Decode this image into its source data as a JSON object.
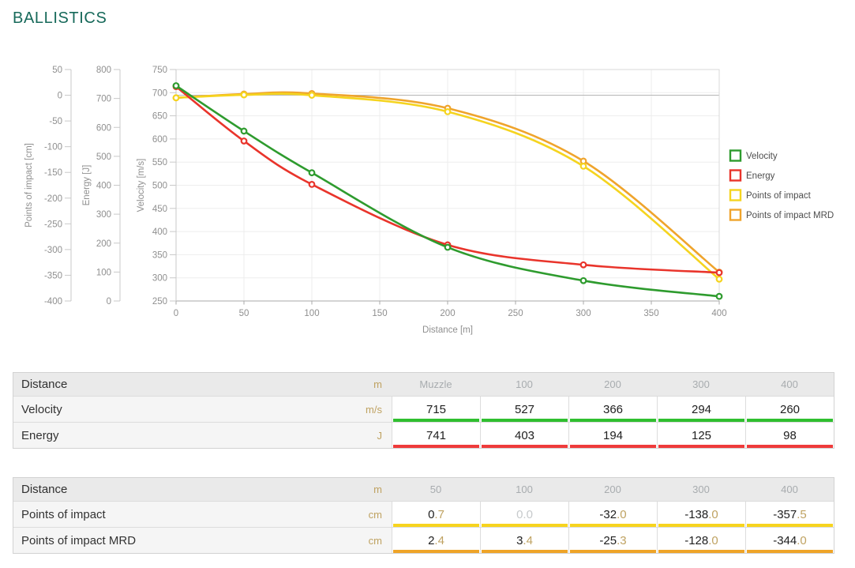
{
  "title": "BALLISTICS",
  "theme": {
    "title_color": "#17695a",
    "unit_color": "#bfa261",
    "muted_value_color": "#c7cacc"
  },
  "chart_data": {
    "type": "line",
    "xlabel": "Distance [m]",
    "x_range": [
      0,
      400
    ],
    "x_ticks": [
      0,
      50,
      100,
      150,
      200,
      250,
      300,
      350,
      400
    ],
    "grid": true,
    "legend_position": "right",
    "axes": [
      {
        "id": "impact",
        "label": "Points of impact [cm]",
        "range": [
          -400,
          50
        ],
        "ticks": [
          50,
          0,
          -50,
          -100,
          -150,
          -200,
          -250,
          -300,
          -350,
          -400
        ],
        "zero_line": 0
      },
      {
        "id": "energy",
        "label": "Energy [J]",
        "range": [
          0,
          800
        ],
        "ticks": [
          800,
          700,
          600,
          500,
          400,
          300,
          200,
          100,
          0
        ]
      },
      {
        "id": "velocity",
        "label": "Velocity [m/s]",
        "range": [
          250,
          750
        ],
        "ticks": [
          750,
          700,
          650,
          600,
          550,
          500,
          450,
          400,
          350,
          300,
          250
        ]
      }
    ],
    "series": [
      {
        "name": "Velocity",
        "axis": "velocity",
        "color": "#2e9b2e",
        "x": [
          0,
          50,
          100,
          200,
          300,
          400
        ],
        "y": [
          715,
          617,
          527,
          366,
          294,
          260
        ]
      },
      {
        "name": "Energy",
        "axis": "energy",
        "color": "#e9342b",
        "x": [
          0,
          50,
          100,
          200,
          300,
          400
        ],
        "y": [
          741,
          553,
          403,
          194,
          125,
          98
        ]
      },
      {
        "name": "Points of impact",
        "axis": "impact",
        "color": "#f5d41f",
        "x": [
          0,
          50,
          100,
          200,
          300,
          400
        ],
        "y": [
          -5.0,
          0.7,
          0.0,
          -32.0,
          -138.0,
          -357.5
        ]
      },
      {
        "name": "Points of impact MRD",
        "axis": "impact",
        "color": "#efa42c",
        "x": [
          0,
          50,
          100,
          200,
          300,
          400
        ],
        "y": [
          -5.0,
          2.4,
          3.4,
          -25.3,
          -128.0,
          -344.0
        ]
      }
    ],
    "legend": [
      {
        "label": "Velocity",
        "color": "#2e9b2e"
      },
      {
        "label": "Energy",
        "color": "#e9342b"
      },
      {
        "label": "Points of impact",
        "color": "#f5d41f"
      },
      {
        "label": "Points of impact MRD",
        "color": "#efa42c"
      }
    ]
  },
  "tables": [
    {
      "id": "velocity-energy",
      "header": {
        "label": "Distance",
        "unit": "m",
        "columns": [
          "Muzzle",
          "100",
          "200",
          "300",
          "400"
        ]
      },
      "rows": [
        {
          "label": "Velocity",
          "unit": "m/s",
          "stripe": "#2fbf2f",
          "values": [
            {
              "main": "715"
            },
            {
              "main": "527"
            },
            {
              "main": "366"
            },
            {
              "main": "294"
            },
            {
              "main": "260"
            }
          ]
        },
        {
          "label": "Energy",
          "unit": "J",
          "stripe": "#ef3b3b",
          "values": [
            {
              "main": "741"
            },
            {
              "main": "403"
            },
            {
              "main": "194"
            },
            {
              "main": "125"
            },
            {
              "main": "98"
            }
          ]
        }
      ]
    },
    {
      "id": "points-of-impact",
      "header": {
        "label": "Distance",
        "unit": "m",
        "columns": [
          "50",
          "100",
          "200",
          "300",
          "400"
        ]
      },
      "rows": [
        {
          "label": "Points of impact",
          "unit": "cm",
          "stripe": "#f7d41e",
          "values": [
            {
              "main": "0",
              "dec": ".7"
            },
            {
              "main": "0",
              "dec": ".0",
              "muted": true
            },
            {
              "main": "-32",
              "dec": ".0"
            },
            {
              "main": "-138",
              "dec": ".0"
            },
            {
              "main": "-357",
              "dec": ".5"
            }
          ]
        },
        {
          "label": "Points of impact MRD",
          "unit": "cm",
          "stripe": "#eea428",
          "values": [
            {
              "main": "2",
              "dec": ".4"
            },
            {
              "main": "3",
              "dec": ".4"
            },
            {
              "main": "-25",
              "dec": ".3"
            },
            {
              "main": "-128",
              "dec": ".0"
            },
            {
              "main": "-344",
              "dec": ".0"
            }
          ]
        }
      ]
    }
  ]
}
